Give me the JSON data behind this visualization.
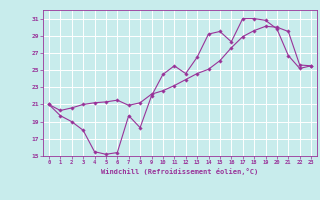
{
  "background_color": "#c8ecec",
  "line_color": "#993399",
  "marker": "D",
  "markersize": 1.8,
  "linewidth": 0.8,
  "xlim": [
    -0.5,
    23.5
  ],
  "ylim": [
    15,
    32
  ],
  "yticks": [
    15,
    17,
    19,
    21,
    23,
    25,
    27,
    29,
    31
  ],
  "xticks": [
    0,
    1,
    2,
    3,
    4,
    5,
    6,
    7,
    8,
    9,
    10,
    11,
    12,
    13,
    14,
    15,
    16,
    17,
    18,
    19,
    20,
    21,
    22,
    23
  ],
  "grid_color": "#ffffff",
  "xlabel": "Windchill (Refroidissement éolien,°C)",
  "line1_x": [
    0,
    1,
    2,
    3,
    4,
    5,
    6,
    7,
    8,
    9,
    10,
    11,
    12,
    13,
    14,
    15,
    16,
    17,
    18,
    19,
    20,
    21,
    22,
    23
  ],
  "line1_y": [
    21.0,
    19.7,
    19.0,
    18.0,
    15.5,
    15.2,
    15.4,
    19.7,
    18.3,
    22.0,
    24.5,
    25.5,
    24.6,
    26.5,
    29.2,
    29.5,
    28.3,
    31.0,
    31.0,
    30.8,
    29.8,
    26.7,
    25.2,
    25.5
  ],
  "line2_x": [
    0,
    1,
    2,
    3,
    4,
    5,
    6,
    7,
    8,
    9,
    10,
    11,
    12,
    13,
    14,
    15,
    16,
    17,
    18,
    19,
    20,
    21,
    22,
    23
  ],
  "line2_y": [
    21.0,
    20.3,
    20.6,
    21.0,
    21.2,
    21.3,
    21.5,
    20.9,
    21.2,
    22.2,
    22.6,
    23.2,
    23.9,
    24.6,
    25.1,
    26.1,
    27.6,
    28.9,
    29.6,
    30.1,
    30.0,
    29.5,
    25.6,
    25.5
  ]
}
